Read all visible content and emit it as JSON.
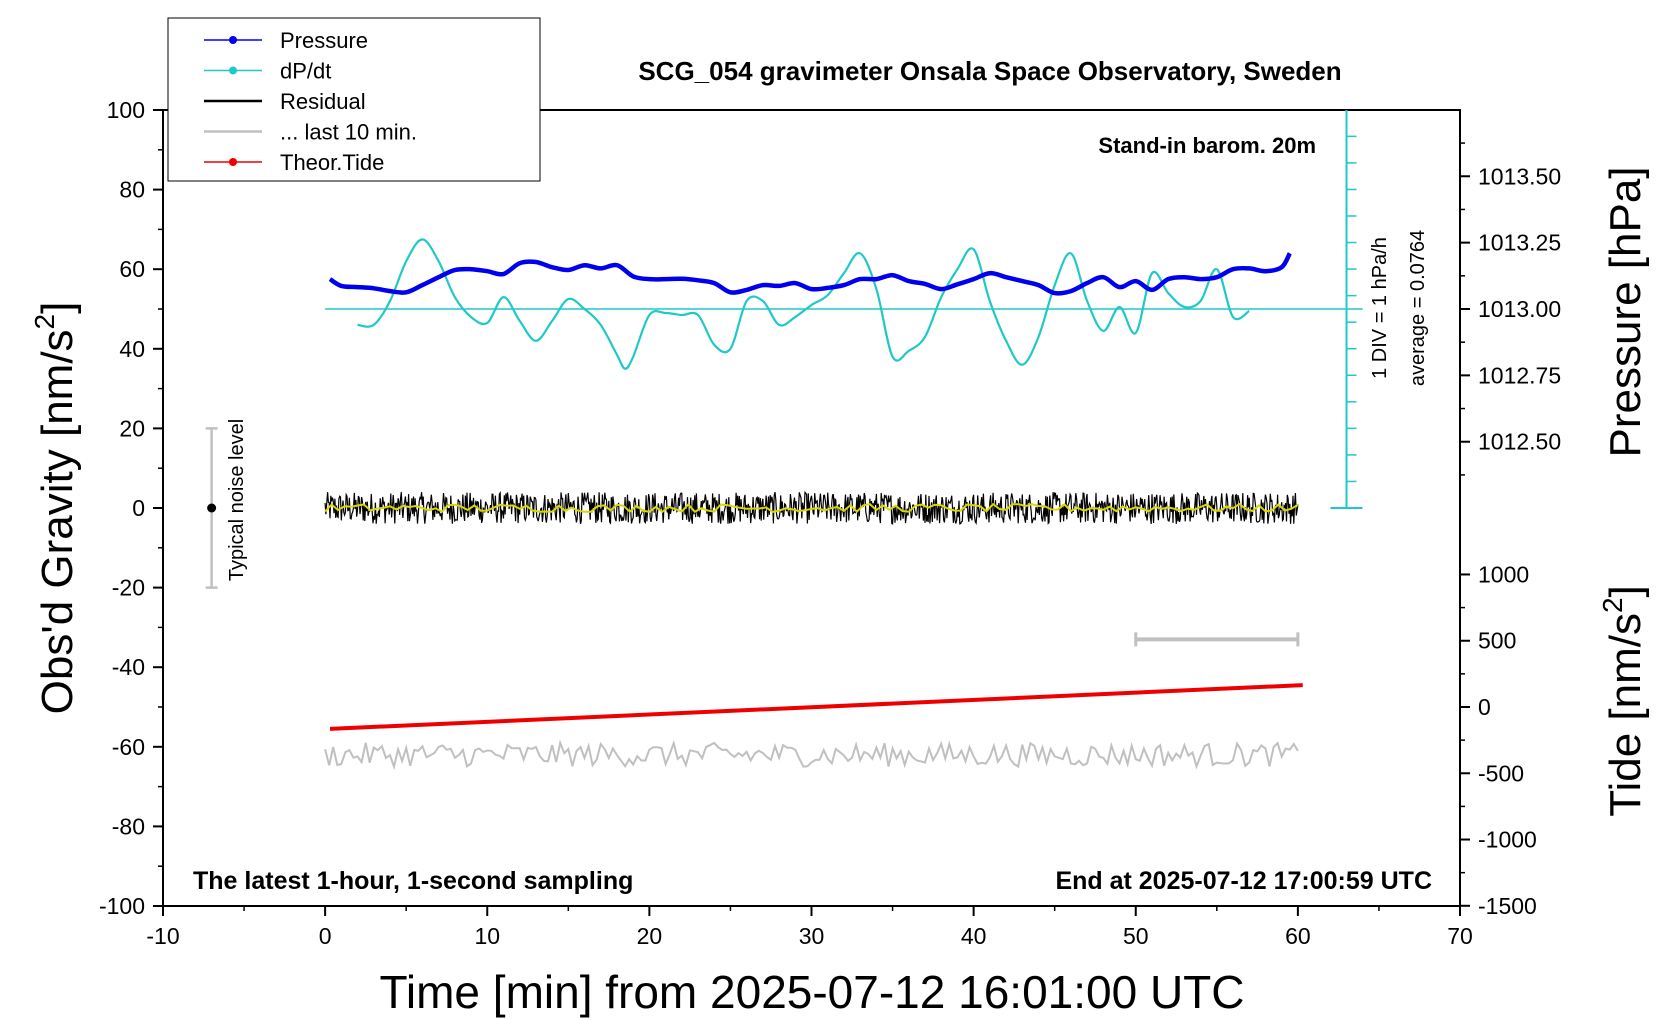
{
  "chart_data": {
    "type": "line",
    "title": "SCG_054 gravimeter Onsala Space Observatory, Sweden",
    "xlabel": "Time [min] from 2025-07-12 16:01:00 UTC",
    "ylabel": "Obs'd Gravity [nm/s",
    "ylabel_sup": "2",
    "ylabel_close": "]",
    "pressure_axis_label": "Pressure [hPa]",
    "tide_axis_label": "Tide [nm/s",
    "tide_axis_sup": "2",
    "tide_axis_close": "]",
    "xlim": [
      -10,
      70
    ],
    "ylim": [
      -100,
      100
    ],
    "x_ticks": [
      "-10",
      "0",
      "10",
      "20",
      "30",
      "40",
      "50",
      "60",
      "70"
    ],
    "y_ticks": [
      "100",
      "80",
      "60",
      "40",
      "20",
      "0",
      "-20",
      "-40",
      "-60",
      "-80",
      "-100"
    ],
    "pressure_ticks": [
      "1013.50",
      "1013.25",
      "1013.00",
      "1012.75",
      "1012.50"
    ],
    "pressure_tick_values": [
      1013.5,
      1013.25,
      1013.0,
      1012.75,
      1012.5
    ],
    "tide_ticks": [
      "1000",
      "500",
      "0",
      "-500",
      "-1000",
      "-1500"
    ],
    "tide_tick_values": [
      1000,
      500,
      0,
      -500,
      -1000,
      -1500
    ],
    "pressure_scale": {
      "hpa_at_gravity_50": 1013.0,
      "gravity_units_per_hpa": 66.7
    },
    "tide_scale": {
      "tide_at_gravity_minus_50": 0,
      "gravity_units_per_nms2": 0.0333
    },
    "legend": [
      {
        "label": "Pressure",
        "color": "#0000ee",
        "marker": true
      },
      {
        "label": "dP/dt",
        "color": "#20c8c8",
        "marker": true
      },
      {
        "label": "Residual",
        "color": "#000000",
        "marker": false
      },
      {
        "label": "... last 10 min.",
        "color": "#c0c0c0",
        "marker": false
      },
      {
        "label": "Theor.Tide",
        "color": "#ee0000",
        "marker": true
      }
    ],
    "legend_position": "top-left",
    "annotations": {
      "barometer": "Stand-in barom. 20m",
      "div_label": "1 DIV = 1 hPa/h",
      "average_label": "average = 0.0764",
      "noise_label": "Typical noise level",
      "bottom_left": "The latest 1-hour, 1-second sampling",
      "bottom_right": "End at 2025-07-12 17:00:59 UTC"
    },
    "noise_bar": {
      "x": -7,
      "center": 0,
      "half_range": 20
    },
    "last10_bar": {
      "x_start": 50,
      "x_end": 60,
      "y": -33
    },
    "dpdt_ruler": {
      "x": 63,
      "y_bottom": 0,
      "y_top": 100,
      "baseline": 50,
      "div_gravity_units": 6.67
    },
    "series": [
      {
        "name": "Pressure",
        "color": "#0000ee",
        "x": [
          0.3,
          1,
          2,
          3,
          4,
          5,
          6,
          7,
          8,
          9,
          10,
          11,
          12,
          13,
          14,
          15,
          16,
          17,
          18,
          19,
          20,
          21,
          22,
          23,
          24,
          25,
          26,
          27,
          28,
          29,
          30,
          31,
          32,
          33,
          34,
          35,
          36,
          37,
          38,
          39,
          40,
          41,
          42,
          43,
          44,
          45,
          46,
          47,
          48,
          49,
          50,
          51,
          52,
          53,
          54,
          55,
          56,
          57,
          58,
          59,
          59.5
        ],
        "y": [
          57.5,
          55.8,
          55.5,
          55.2,
          54.5,
          54.2,
          56.0,
          58.0,
          59.8,
          60.0,
          59.5,
          58.8,
          61.5,
          61.8,
          60.5,
          59.8,
          61.0,
          60.2,
          61.0,
          58.2,
          57.5,
          57.5,
          57.6,
          57.2,
          56.5,
          54.2,
          54.8,
          56.0,
          55.8,
          56.5,
          55.0,
          55.3,
          56.0,
          57.5,
          57.5,
          58.5,
          57.0,
          56.3,
          55.0,
          56.2,
          57.5,
          59.0,
          58.0,
          57.0,
          56.0,
          54.0,
          54.5,
          56.5,
          58.0,
          55.5,
          57.0,
          54.8,
          57.5,
          58.0,
          57.5,
          58.0,
          60.0,
          60.2,
          59.5,
          60.5,
          64.0
        ]
      },
      {
        "name": "dP/dt",
        "color": "#20c8c8",
        "x": [
          2,
          3,
          4,
          5,
          6,
          7,
          8,
          9,
          10,
          11,
          12,
          13,
          14,
          15,
          16,
          17,
          18,
          18.5,
          19,
          20,
          21,
          22,
          23,
          24,
          25,
          26,
          27,
          28,
          29,
          30,
          31,
          32,
          33,
          34,
          35,
          36,
          37,
          38,
          39,
          40,
          41,
          42,
          43,
          44,
          45,
          46,
          47,
          48,
          49,
          50,
          51,
          52,
          53,
          54,
          55,
          56,
          57
        ],
        "y": [
          46.0,
          46.0,
          52.0,
          62.0,
          67.5,
          62.0,
          53.0,
          48.0,
          46.5,
          53.0,
          47.0,
          42.0,
          47.0,
          52.5,
          50.0,
          46.0,
          38.5,
          35.0,
          38.0,
          48.5,
          49.0,
          48.5,
          48.5,
          41.0,
          40.0,
          52.0,
          52.0,
          46.0,
          48.0,
          51.0,
          53.5,
          59.0,
          64.0,
          55.0,
          38.0,
          39.5,
          43.0,
          53.0,
          60.0,
          65.0,
          52.0,
          42.0,
          36.0,
          43.0,
          56.0,
          64.0,
          52.0,
          44.5,
          50.5,
          44.0,
          59.0,
          54.0,
          50.5,
          52.0,
          60.0,
          48.0,
          49.5
        ]
      },
      {
        "name": "Residual",
        "color": "#000000",
        "x_range": [
          0,
          60
        ],
        "center": 0,
        "amplitude": 4
      },
      {
        "name": "Residual (smoothed)",
        "color": "#d8d800",
        "x_range": [
          0,
          60
        ],
        "center": 0,
        "amplitude": 1
      },
      {
        "name": "Theor.Tide",
        "color": "#ee0000",
        "x": [
          0.3,
          60.3
        ],
        "y": [
          -55.5,
          -44.5
        ]
      },
      {
        "name": "... last 10 min.",
        "color": "#c0c0c0",
        "x_range": [
          0,
          60
        ],
        "center": -62,
        "amplitude": 3
      }
    ]
  }
}
